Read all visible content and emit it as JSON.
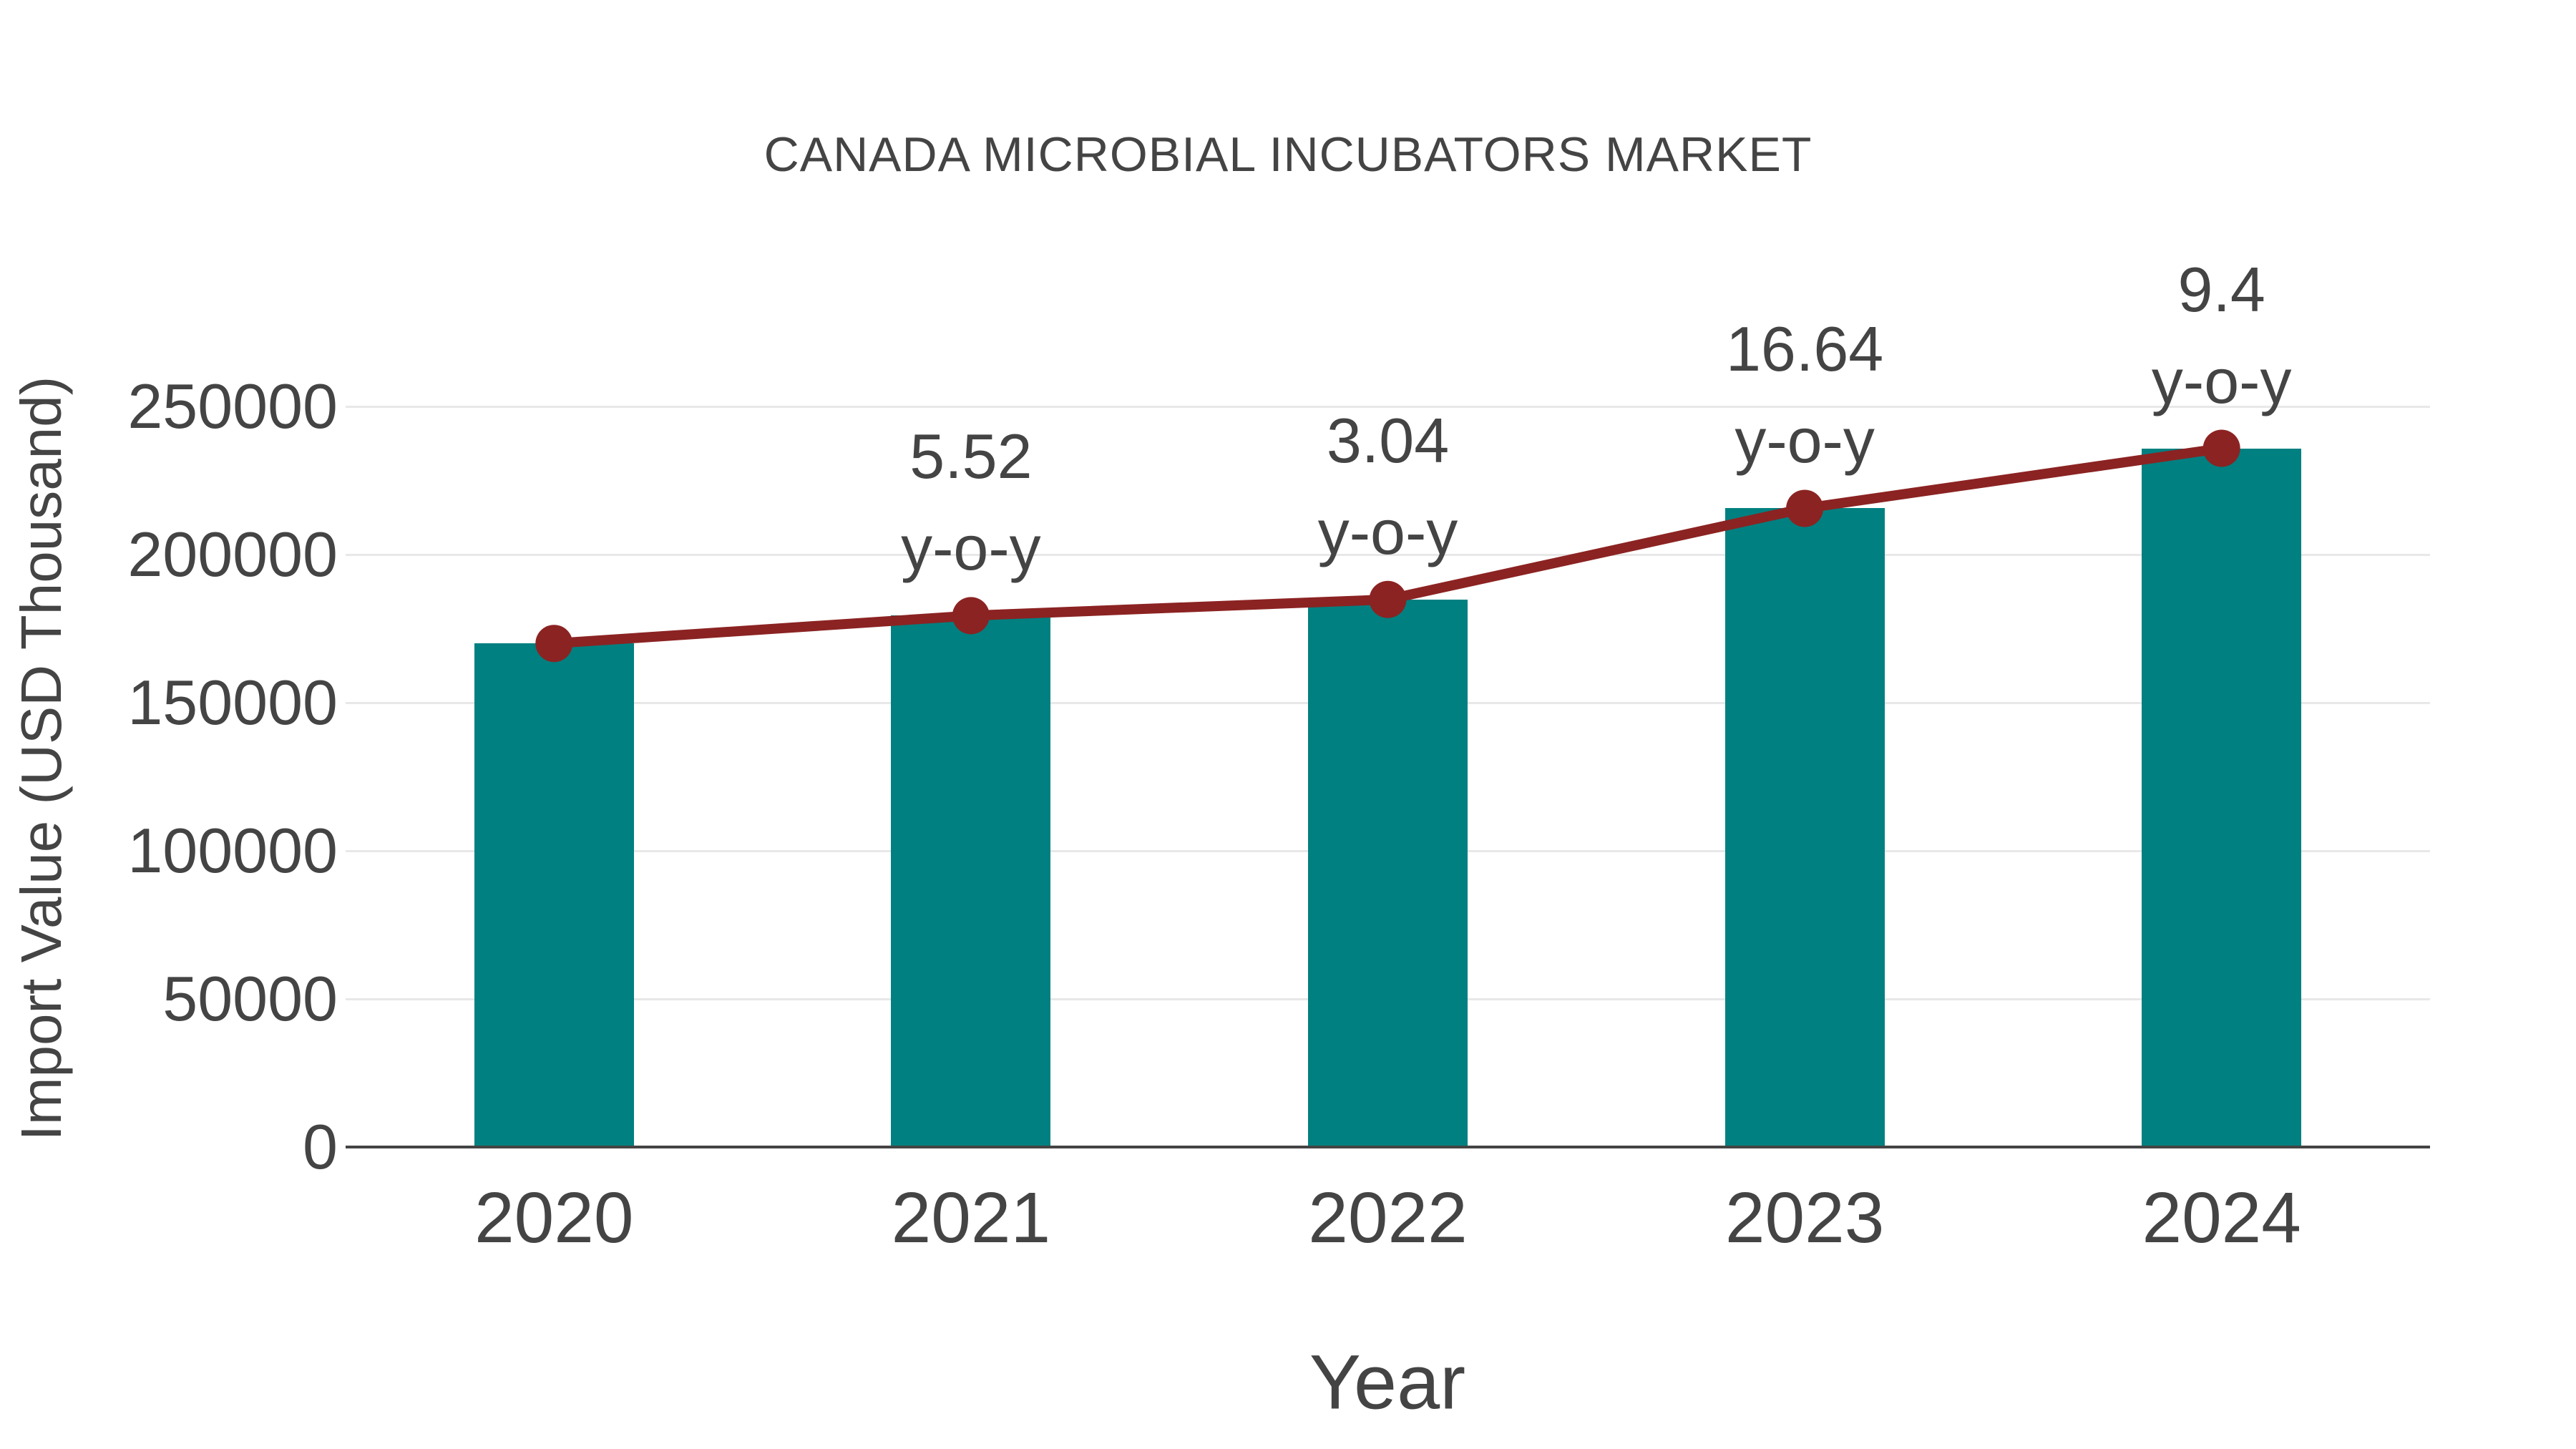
{
  "chart_data": {
    "type": [
      "bar",
      "line"
    ],
    "title": "CANADA MICROBIAL INCUBATORS MARKET",
    "xlabel": "Year",
    "ylabel": "Import Value (USD Thousand)",
    "categories": [
      "2020",
      "2021",
      "2022",
      "2023",
      "2024"
    ],
    "series": [
      {
        "name": "import-value-bars",
        "type": "bar",
        "color": "#008080",
        "values": [
          170000,
          179384,
          184837,
          215594,
          235860
        ]
      },
      {
        "name": "import-value-trend-line",
        "type": "line",
        "color": "#8b2322",
        "values": [
          170000,
          179384,
          184837,
          215594,
          235860
        ]
      }
    ],
    "annotations": [
      {
        "category": "2021",
        "lines": [
          "5.52",
          "y-o-y"
        ]
      },
      {
        "category": "2022",
        "lines": [
          "3.04",
          "y-o-y"
        ]
      },
      {
        "category": "2023",
        "lines": [
          "16.64",
          "y-o-y"
        ]
      },
      {
        "category": "2024",
        "lines": [
          "9.4",
          "y-o-y"
        ]
      }
    ],
    "yticks": [
      0,
      50000,
      100000,
      150000,
      200000,
      250000
    ],
    "ylim": [
      0,
      250000
    ],
    "grid": true,
    "legend": false
  },
  "colors": {
    "bar": "#008080",
    "line": "#8b2322",
    "text": "#444444",
    "grid": "#e8e8e8",
    "axis": "#444444",
    "background": "#ffffff"
  }
}
